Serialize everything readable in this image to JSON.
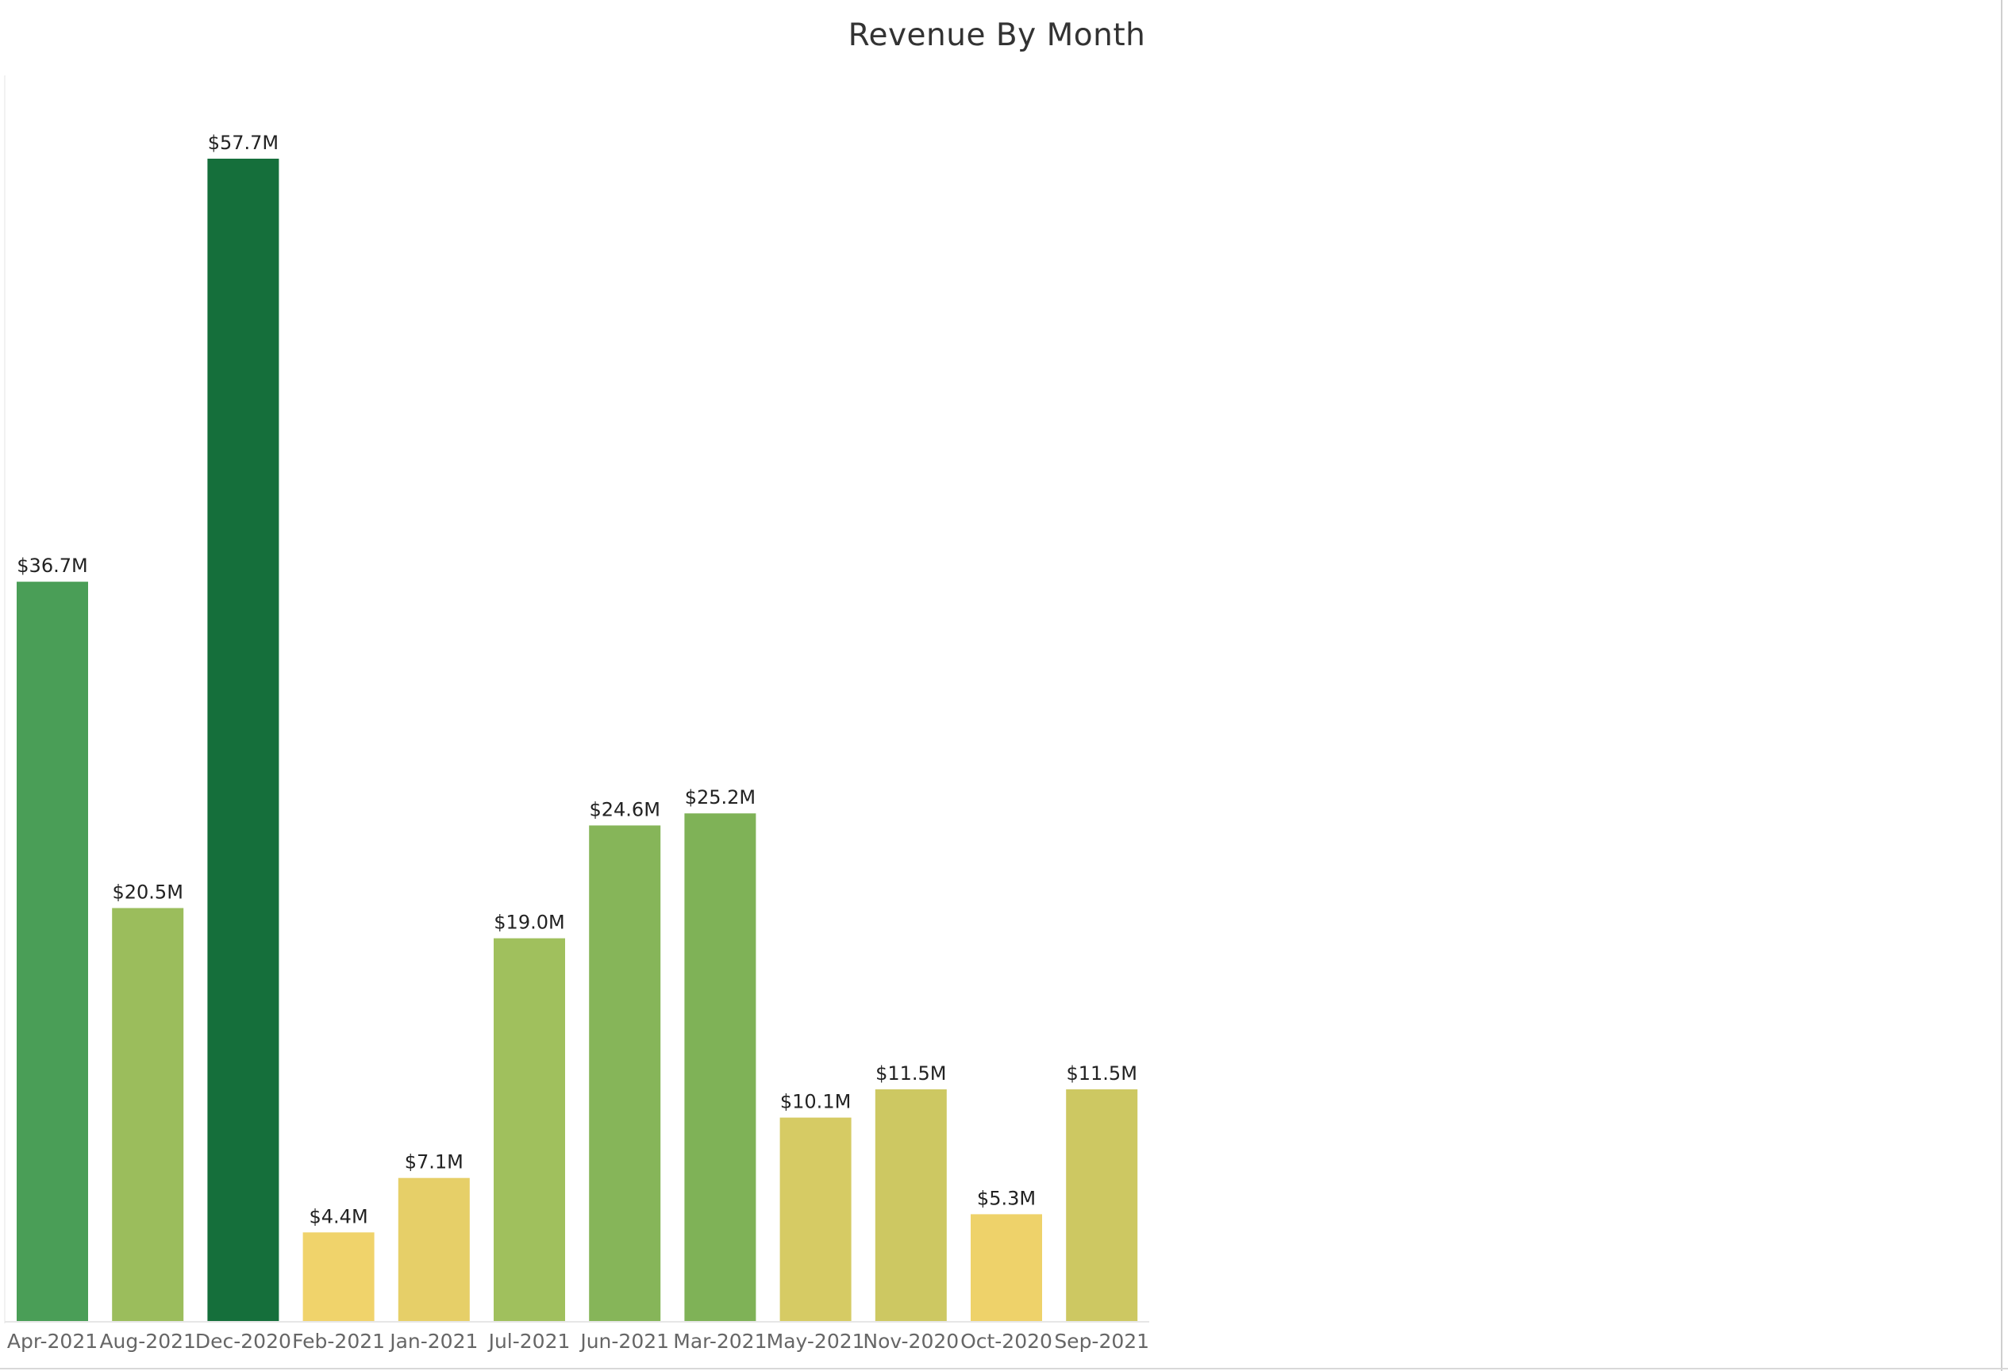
{
  "chart_data": {
    "type": "bar",
    "title": "Revenue By Month",
    "xlabel": "",
    "ylabel": "",
    "ylim": [
      0,
      57.7
    ],
    "grid": false,
    "categories": [
      "Apr-2021",
      "Aug-2021",
      "Dec-2020",
      "Feb-2021",
      "Jan-2021",
      "Jul-2021",
      "Jun-2021",
      "Mar-2021",
      "May-2021",
      "Nov-2020",
      "Oct-2020",
      "Sep-2021"
    ],
    "values": [
      36.7,
      20.5,
      57.7,
      4.4,
      7.1,
      19.0,
      24.6,
      25.2,
      10.1,
      11.5,
      5.3,
      11.5
    ],
    "labels": [
      "$36.7M",
      "$20.5M",
      "$57.7M",
      "$4.4M",
      "$7.1M",
      "$19.0M",
      "$24.6M",
      "$25.2M",
      "$10.1M",
      "$11.5M",
      "$5.3M",
      "$11.5M"
    ],
    "colors": [
      "#4a9e57",
      "#9bbd5c",
      "#156f3b",
      "#f0d36b",
      "#e6cf68",
      "#a0c05d",
      "#86b559",
      "#7fb257",
      "#d6cb64",
      "#cdc862",
      "#eed26a",
      "#cdc862"
    ]
  }
}
